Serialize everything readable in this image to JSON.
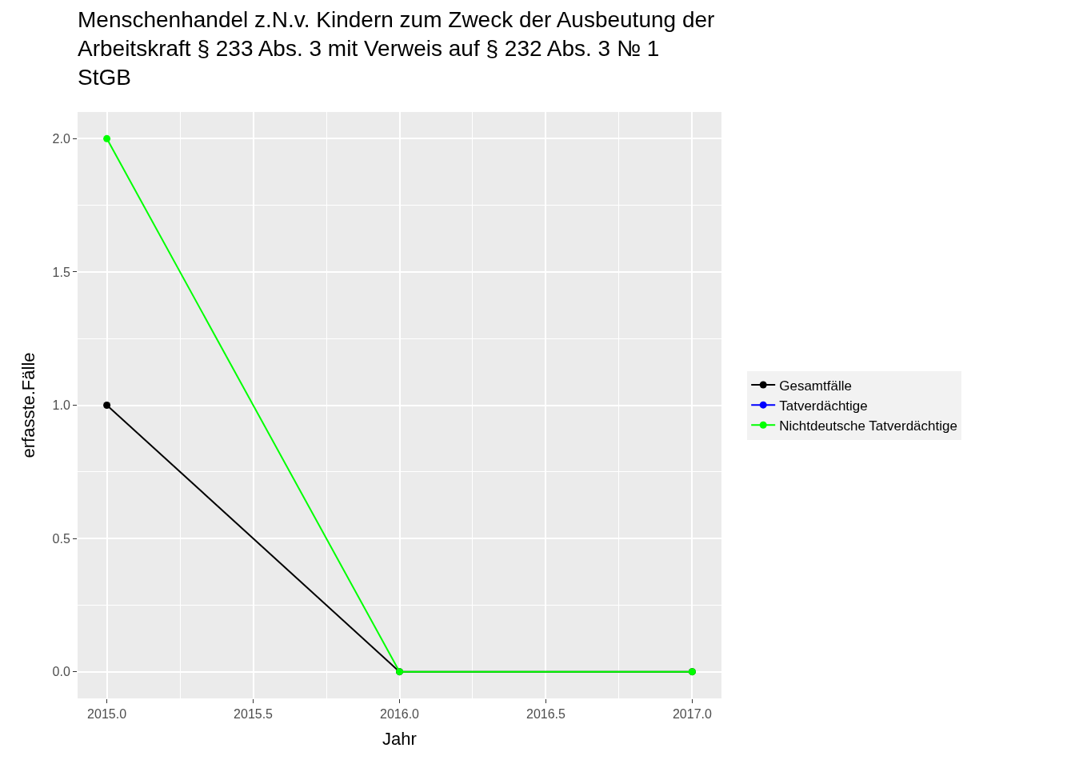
{
  "chart_data": {
    "type": "line",
    "title": "Menschenhandel z.N.v. Kindern zum Zweck der Ausbeutung der\nArbeitskraft § 233 Abs. 3 mit Verweis auf § 232 Abs. 3 № 1\nStGB",
    "xlabel": "Jahr",
    "ylabel": "erfasste.Fälle",
    "x": [
      2015,
      2016,
      2017
    ],
    "series": [
      {
        "name": "Gesamtfälle",
        "color": "#000000",
        "values": [
          1,
          0,
          0
        ]
      },
      {
        "name": "Tatverdächtige",
        "color": "#0000ff",
        "values": [
          null,
          null,
          null
        ]
      },
      {
        "name": "Nichtdeutsche Tatverdächtige",
        "color": "#00ff00",
        "values": [
          2,
          0,
          0
        ]
      }
    ],
    "xlim": [
      2014.9,
      2017.1
    ],
    "xticks": [
      {
        "value": 2015,
        "label": "2015.0"
      },
      {
        "value": 2015.5,
        "label": "2015.5"
      },
      {
        "value": 2016,
        "label": "2016.0"
      },
      {
        "value": 2016.5,
        "label": "2016.5"
      },
      {
        "value": 2017,
        "label": "2017.0"
      }
    ],
    "ylim": [
      -0.1,
      2.1
    ],
    "yticks": [
      {
        "value": 0,
        "label": "0.0"
      },
      {
        "value": 0.5,
        "label": "0.5"
      },
      {
        "value": 1,
        "label": "1.0"
      },
      {
        "value": 1.5,
        "label": "1.5"
      },
      {
        "value": 2,
        "label": "2.0"
      }
    ],
    "grid": true,
    "legend": "right",
    "marker": "circle",
    "line_style": "solid"
  }
}
